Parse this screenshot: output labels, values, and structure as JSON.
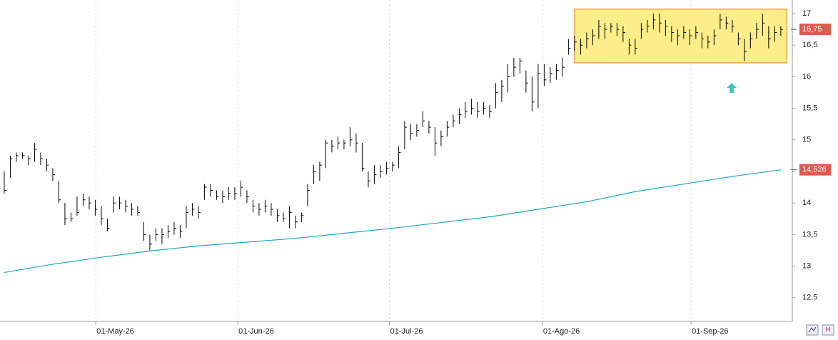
{
  "chart_data": {
    "type": "hlc",
    "color": "#000000",
    "hlc": [
      [
        14.5,
        14.15,
        14.2
      ],
      [
        14.75,
        14.4,
        14.7
      ],
      [
        14.8,
        14.65,
        14.75
      ],
      [
        14.8,
        14.7,
        14.75
      ],
      [
        14.75,
        14.6,
        14.7
      ],
      [
        14.95,
        14.65,
        14.85
      ],
      [
        14.8,
        14.6,
        14.7
      ],
      [
        14.7,
        14.5,
        14.6
      ],
      [
        14.55,
        14.35,
        14.45
      ],
      [
        14.35,
        14.0,
        14.05
      ],
      [
        14.0,
        13.65,
        13.75
      ],
      [
        13.85,
        13.7,
        13.75
      ],
      [
        14.1,
        13.8,
        13.85
      ],
      [
        14.15,
        13.95,
        14.05
      ],
      [
        14.1,
        13.9,
        14.0
      ],
      [
        14.05,
        13.8,
        13.9
      ],
      [
        13.95,
        13.65,
        13.75
      ],
      [
        13.75,
        13.55,
        13.6
      ],
      [
        14.1,
        13.85,
        14.0
      ],
      [
        14.1,
        13.9,
        14.0
      ],
      [
        14.05,
        13.85,
        13.95
      ],
      [
        14.0,
        13.8,
        13.9
      ],
      [
        13.95,
        13.8,
        13.85
      ],
      [
        13.7,
        13.4,
        13.5
      ],
      [
        13.5,
        13.25,
        13.35
      ],
      [
        13.6,
        13.4,
        13.5
      ],
      [
        13.6,
        13.35,
        13.5
      ],
      [
        13.65,
        13.45,
        13.55
      ],
      [
        13.7,
        13.5,
        13.6
      ],
      [
        13.65,
        13.45,
        13.55
      ],
      [
        13.95,
        13.6,
        13.85
      ],
      [
        14.0,
        13.8,
        13.9
      ],
      [
        13.95,
        13.75,
        13.85
      ],
      [
        14.3,
        14.05,
        14.25
      ],
      [
        14.3,
        14.1,
        14.2
      ],
      [
        14.2,
        14.05,
        14.1
      ],
      [
        14.2,
        14.0,
        14.1
      ],
      [
        14.25,
        14.05,
        14.15
      ],
      [
        14.25,
        14.05,
        14.15
      ],
      [
        14.35,
        14.1,
        14.25
      ],
      [
        14.2,
        14.0,
        14.1
      ],
      [
        14.05,
        13.85,
        13.95
      ],
      [
        14.0,
        13.8,
        13.9
      ],
      [
        14.05,
        13.85,
        13.95
      ],
      [
        14.0,
        13.8,
        13.9
      ],
      [
        13.9,
        13.7,
        13.8
      ],
      [
        13.85,
        13.7,
        13.75
      ],
      [
        13.95,
        13.6,
        13.85
      ],
      [
        13.8,
        13.6,
        13.7
      ],
      [
        13.85,
        13.7,
        13.8
      ],
      [
        14.3,
        13.95,
        14.2
      ],
      [
        14.6,
        14.3,
        14.5
      ],
      [
        14.65,
        14.35,
        14.6
      ],
      [
        15.0,
        14.55,
        14.95
      ],
      [
        15.0,
        14.8,
        14.9
      ],
      [
        15.05,
        14.85,
        14.95
      ],
      [
        15.0,
        14.85,
        14.95
      ],
      [
        15.2,
        14.9,
        15.0
      ],
      [
        15.1,
        14.8,
        14.95
      ],
      [
        14.95,
        14.5,
        14.55
      ],
      [
        14.5,
        14.25,
        14.35
      ],
      [
        14.6,
        14.3,
        14.45
      ],
      [
        14.6,
        14.4,
        14.5
      ],
      [
        14.65,
        14.45,
        14.55
      ],
      [
        14.65,
        14.5,
        14.6
      ],
      [
        14.9,
        14.55,
        14.8
      ],
      [
        15.3,
        14.85,
        15.2
      ],
      [
        15.25,
        15.0,
        15.1
      ],
      [
        15.25,
        15.05,
        15.15
      ],
      [
        15.45,
        15.2,
        15.3
      ],
      [
        15.3,
        15.1,
        15.2
      ],
      [
        15.2,
        14.75,
        14.95
      ],
      [
        15.15,
        14.9,
        15.05
      ],
      [
        15.3,
        15.05,
        15.2
      ],
      [
        15.4,
        15.2,
        15.3
      ],
      [
        15.5,
        15.25,
        15.4
      ],
      [
        15.6,
        15.35,
        15.45
      ],
      [
        15.65,
        15.4,
        15.5
      ],
      [
        15.6,
        15.35,
        15.45
      ],
      [
        15.6,
        15.4,
        15.5
      ],
      [
        15.55,
        15.35,
        15.45
      ],
      [
        15.9,
        15.5,
        15.75
      ],
      [
        15.95,
        15.6,
        15.85
      ],
      [
        16.2,
        15.75,
        16.0
      ],
      [
        16.3,
        16.0,
        16.15
      ],
      [
        16.3,
        16.05,
        16.25
      ],
      [
        16.1,
        15.75,
        15.9
      ],
      [
        16.0,
        15.45,
        15.6
      ],
      [
        16.2,
        15.5,
        16.05
      ],
      [
        16.2,
        15.85,
        15.95
      ],
      [
        16.15,
        15.9,
        16.05
      ],
      [
        16.2,
        15.95,
        16.1
      ],
      [
        16.3,
        16.0,
        16.15
      ],
      [
        16.6,
        16.35,
        16.45
      ],
      [
        16.65,
        16.4,
        16.55
      ],
      [
        16.6,
        16.35,
        16.5
      ],
      [
        16.7,
        16.45,
        16.6
      ],
      [
        16.75,
        16.5,
        16.65
      ],
      [
        16.9,
        16.6,
        16.8
      ],
      [
        16.85,
        16.6,
        16.75
      ],
      [
        16.85,
        16.7,
        16.8
      ],
      [
        16.85,
        16.65,
        16.75
      ],
      [
        16.8,
        16.55,
        16.7
      ],
      [
        16.6,
        16.35,
        16.5
      ],
      [
        16.6,
        16.35,
        16.45
      ],
      [
        16.85,
        16.6,
        16.75
      ],
      [
        16.9,
        16.7,
        16.8
      ],
      [
        17.0,
        16.75,
        16.9
      ],
      [
        17.0,
        16.7,
        16.85
      ],
      [
        16.9,
        16.65,
        16.8
      ],
      [
        16.8,
        16.55,
        16.7
      ],
      [
        16.75,
        16.5,
        16.65
      ],
      [
        16.8,
        16.6,
        16.7
      ],
      [
        16.75,
        16.5,
        16.65
      ],
      [
        16.8,
        16.6,
        16.7
      ],
      [
        16.7,
        16.45,
        16.6
      ],
      [
        16.65,
        16.45,
        16.55
      ],
      [
        16.75,
        16.5,
        16.65
      ],
      [
        17.0,
        16.75,
        16.9
      ],
      [
        16.95,
        16.75,
        16.85
      ],
      [
        16.9,
        16.7,
        16.8
      ],
      [
        16.7,
        16.5,
        16.6
      ],
      [
        16.6,
        16.25,
        16.4
      ],
      [
        16.7,
        16.45,
        16.6
      ],
      [
        16.85,
        16.6,
        16.75
      ],
      [
        17.0,
        16.65,
        16.85
      ],
      [
        16.8,
        16.45,
        16.6
      ],
      [
        16.8,
        16.55,
        16.7
      ],
      [
        16.8,
        16.65,
        16.75
      ]
    ],
    "ma": {
      "color": "#1aa3c8",
      "x": [
        0,
        8,
        16,
        24,
        32,
        40,
        48,
        56,
        64,
        72,
        80,
        88,
        96,
        104,
        112,
        120,
        128
      ],
      "values": [
        12.9,
        13.03,
        13.14,
        13.24,
        13.32,
        13.38,
        13.44,
        13.52,
        13.6,
        13.69,
        13.78,
        13.9,
        14.02,
        14.18,
        14.3,
        14.42,
        14.526
      ]
    },
    "price_labels": [
      {
        "value": 16.75,
        "label": "16,75"
      },
      {
        "value": 14.526,
        "label": "14,526"
      }
    ],
    "highlight": {
      "xlim": [
        94,
        129
      ],
      "ylim": [
        16.22,
        17.07
      ]
    },
    "xlim": [
      -0.7,
      129.9
    ],
    "xticks": [
      {
        "value": 15.1,
        "label": "01-May-26"
      },
      {
        "value": 38.5,
        "label": "01-Jun-26"
      },
      {
        "value": 63.5,
        "label": "01-Jul-26"
      },
      {
        "value": 88.7,
        "label": "01-Ago-26"
      },
      {
        "value": 113.2,
        "label": "01-Sep-26"
      }
    ],
    "ylim": [
      12.124,
      17.215
    ],
    "yticks": [
      {
        "value": 12.5,
        "label": "12,5"
      },
      13,
      {
        "value": 13.5,
        "label": "13,5"
      },
      14,
      {
        "value": 14.5,
        "label": "14,5"
      },
      15,
      {
        "value": 15.5,
        "label": "15,5"
      },
      16,
      {
        "value": 16.5,
        "label": "16,5"
      },
      17
    ]
  }
}
